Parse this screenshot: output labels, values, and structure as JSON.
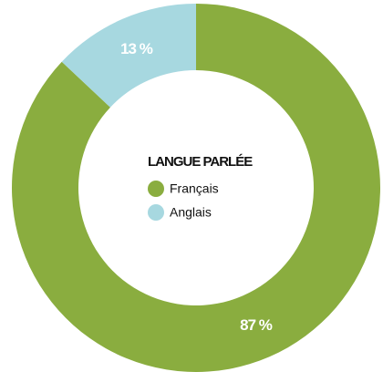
{
  "chart_data": {
    "type": "donut",
    "legend_title": "LANGUE PARLÉE",
    "categories": [
      "Français",
      "Anglais"
    ],
    "values": [
      87,
      13
    ],
    "value_labels": [
      "87 %",
      "13 %"
    ],
    "colors": [
      "#8aad3f",
      "#a7d8e0"
    ]
  }
}
